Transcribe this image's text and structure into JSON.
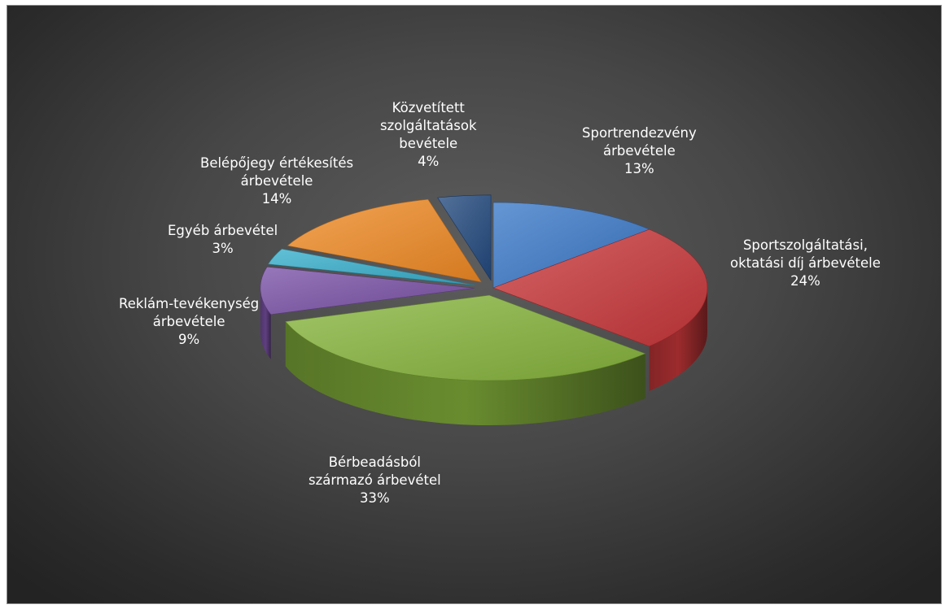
{
  "chart_data": {
    "type": "pie",
    "title": "",
    "legend": "none",
    "slices": [
      {
        "name": "Sportrendezvény árbevétele",
        "label_lines": [
          "Sportrendezvény",
          "árbevétele"
        ],
        "value": 13,
        "pct": "13%",
        "color": "#3a78c8",
        "explode": 0.0
      },
      {
        "name": "Sportszolgáltatási, oktatási díj árbevétele",
        "label_lines": [
          "Sportszolgáltatási,",
          "oktatási díj árbevétele"
        ],
        "value": 24,
        "pct": "24%",
        "color": "#c8373a",
        "explode": 0.0
      },
      {
        "name": "Bérbeadásból származó árbevétel",
        "label_lines": [
          "Bérbeadásból",
          "származó árbevétel"
        ],
        "value": 33,
        "pct": "33%",
        "color": "#86b43c",
        "explode": 0.04
      },
      {
        "name": "Reklám-tevékenység árbevétele",
        "label_lines": [
          "Reklám-tevékenység",
          "árbevétele"
        ],
        "value": 9,
        "pct": "9%",
        "color": "#7a51a6",
        "explode": 0.04
      },
      {
        "name": "Egyéb árbevétel",
        "label_lines": [
          "Egyéb árbevétel"
        ],
        "value": 3,
        "pct": "3%",
        "color": "#36aecb",
        "explode": 0.04
      },
      {
        "name": "Belépőjegy értékesítés árbevétele",
        "label_lines": [
          "Belépőjegy értékesítés",
          "árbevétele"
        ],
        "value": 14,
        "pct": "14%",
        "color": "#f08a24",
        "explode": 0.04
      },
      {
        "name": "Közvetített szolgáltatások bevétele",
        "label_lines": [
          "Közvetített",
          "szolgáltatások",
          "bevétele"
        ],
        "value": 4,
        "pct": "4%",
        "color": "#22497e",
        "explode": 0.04
      }
    ]
  }
}
